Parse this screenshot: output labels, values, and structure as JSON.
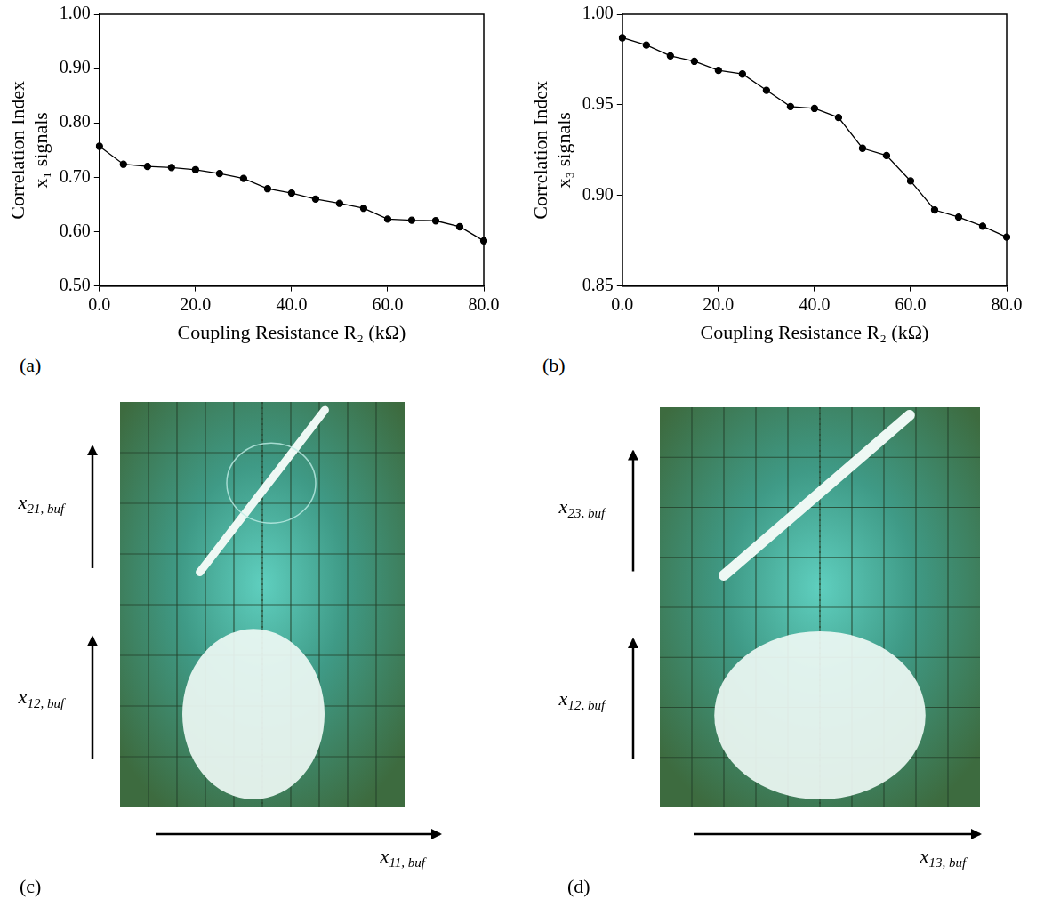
{
  "chart_data": [
    {
      "type": "line",
      "annotations": [
        "(a)"
      ],
      "xlabel": "Coupling Resistance R₂ (kΩ)",
      "ylabel": [
        "Correlation Index",
        "x₁ signals"
      ],
      "x": [
        0,
        5,
        10,
        15,
        20,
        25,
        30,
        35,
        40,
        45,
        50,
        55,
        60,
        65,
        70,
        75,
        80
      ],
      "values": [
        0.757,
        0.724,
        0.72,
        0.718,
        0.714,
        0.707,
        0.698,
        0.679,
        0.671,
        0.66,
        0.652,
        0.643,
        0.623,
        0.621,
        0.62,
        0.609,
        0.583
      ],
      "color": "#000000",
      "marker": "circle",
      "line_style": "solid",
      "xlim": [
        0,
        80
      ],
      "xticks": [
        {
          "value": 0,
          "label": "0.0"
        },
        {
          "value": 20,
          "label": "20.0"
        },
        {
          "value": 40,
          "label": "40.0"
        },
        {
          "value": 60,
          "label": "60.0"
        },
        {
          "value": 80,
          "label": "80.0"
        }
      ],
      "ylim": [
        0.5,
        1.0
      ],
      "yticks": [
        {
          "value": 0.5,
          "label": "0.50"
        },
        {
          "value": 0.6,
          "label": "0.60"
        },
        {
          "value": 0.7,
          "label": "0.70"
        },
        {
          "value": 0.8,
          "label": "0.80"
        },
        {
          "value": 0.9,
          "label": "0.90"
        },
        {
          "value": 1.0,
          "label": "1.00"
        }
      ],
      "grid": false
    },
    {
      "type": "line",
      "annotations": [
        "(b)"
      ],
      "xlabel": "Coupling Resistance R₂ (kΩ)",
      "ylabel": [
        "Correlation Index",
        "x₃ signals"
      ],
      "x": [
        0,
        5,
        10,
        15,
        20,
        25,
        30,
        35,
        40,
        45,
        50,
        55,
        60,
        65,
        70,
        75,
        80
      ],
      "values": [
        0.987,
        0.983,
        0.977,
        0.974,
        0.969,
        0.967,
        0.958,
        0.949,
        0.948,
        0.943,
        0.926,
        0.922,
        0.908,
        0.892,
        0.888,
        0.883,
        0.877
      ],
      "color": "#000000",
      "marker": "circle",
      "line_style": "solid",
      "xlim": [
        0,
        80
      ],
      "xticks": [
        {
          "value": 0,
          "label": "0.0"
        },
        {
          "value": 20,
          "label": "20.0"
        },
        {
          "value": 40,
          "label": "40.0"
        },
        {
          "value": 60,
          "label": "60.0"
        },
        {
          "value": 80,
          "label": "80.0"
        }
      ],
      "ylim": [
        0.85,
        1.0
      ],
      "yticks": [
        {
          "value": 0.85,
          "label": "0.85"
        },
        {
          "value": 0.9,
          "label": "0.90"
        },
        {
          "value": 0.95,
          "label": "0.95"
        },
        {
          "value": 1.0,
          "label": "1.00"
        }
      ],
      "grid": false
    }
  ],
  "photos": [
    {
      "letter": "(c)",
      "y_signals": [
        {
          "base": "x",
          "sub": "21, buf"
        },
        {
          "base": "x",
          "sub": "12, buf"
        }
      ],
      "x_signal": {
        "base": "x",
        "sub": "11, buf"
      }
    },
    {
      "letter": "(d)",
      "y_signals": [
        {
          "base": "x",
          "sub": "23, buf"
        },
        {
          "base": "x",
          "sub": "12, buf"
        }
      ],
      "x_signal": {
        "base": "x",
        "sub": "13, buf"
      }
    }
  ]
}
